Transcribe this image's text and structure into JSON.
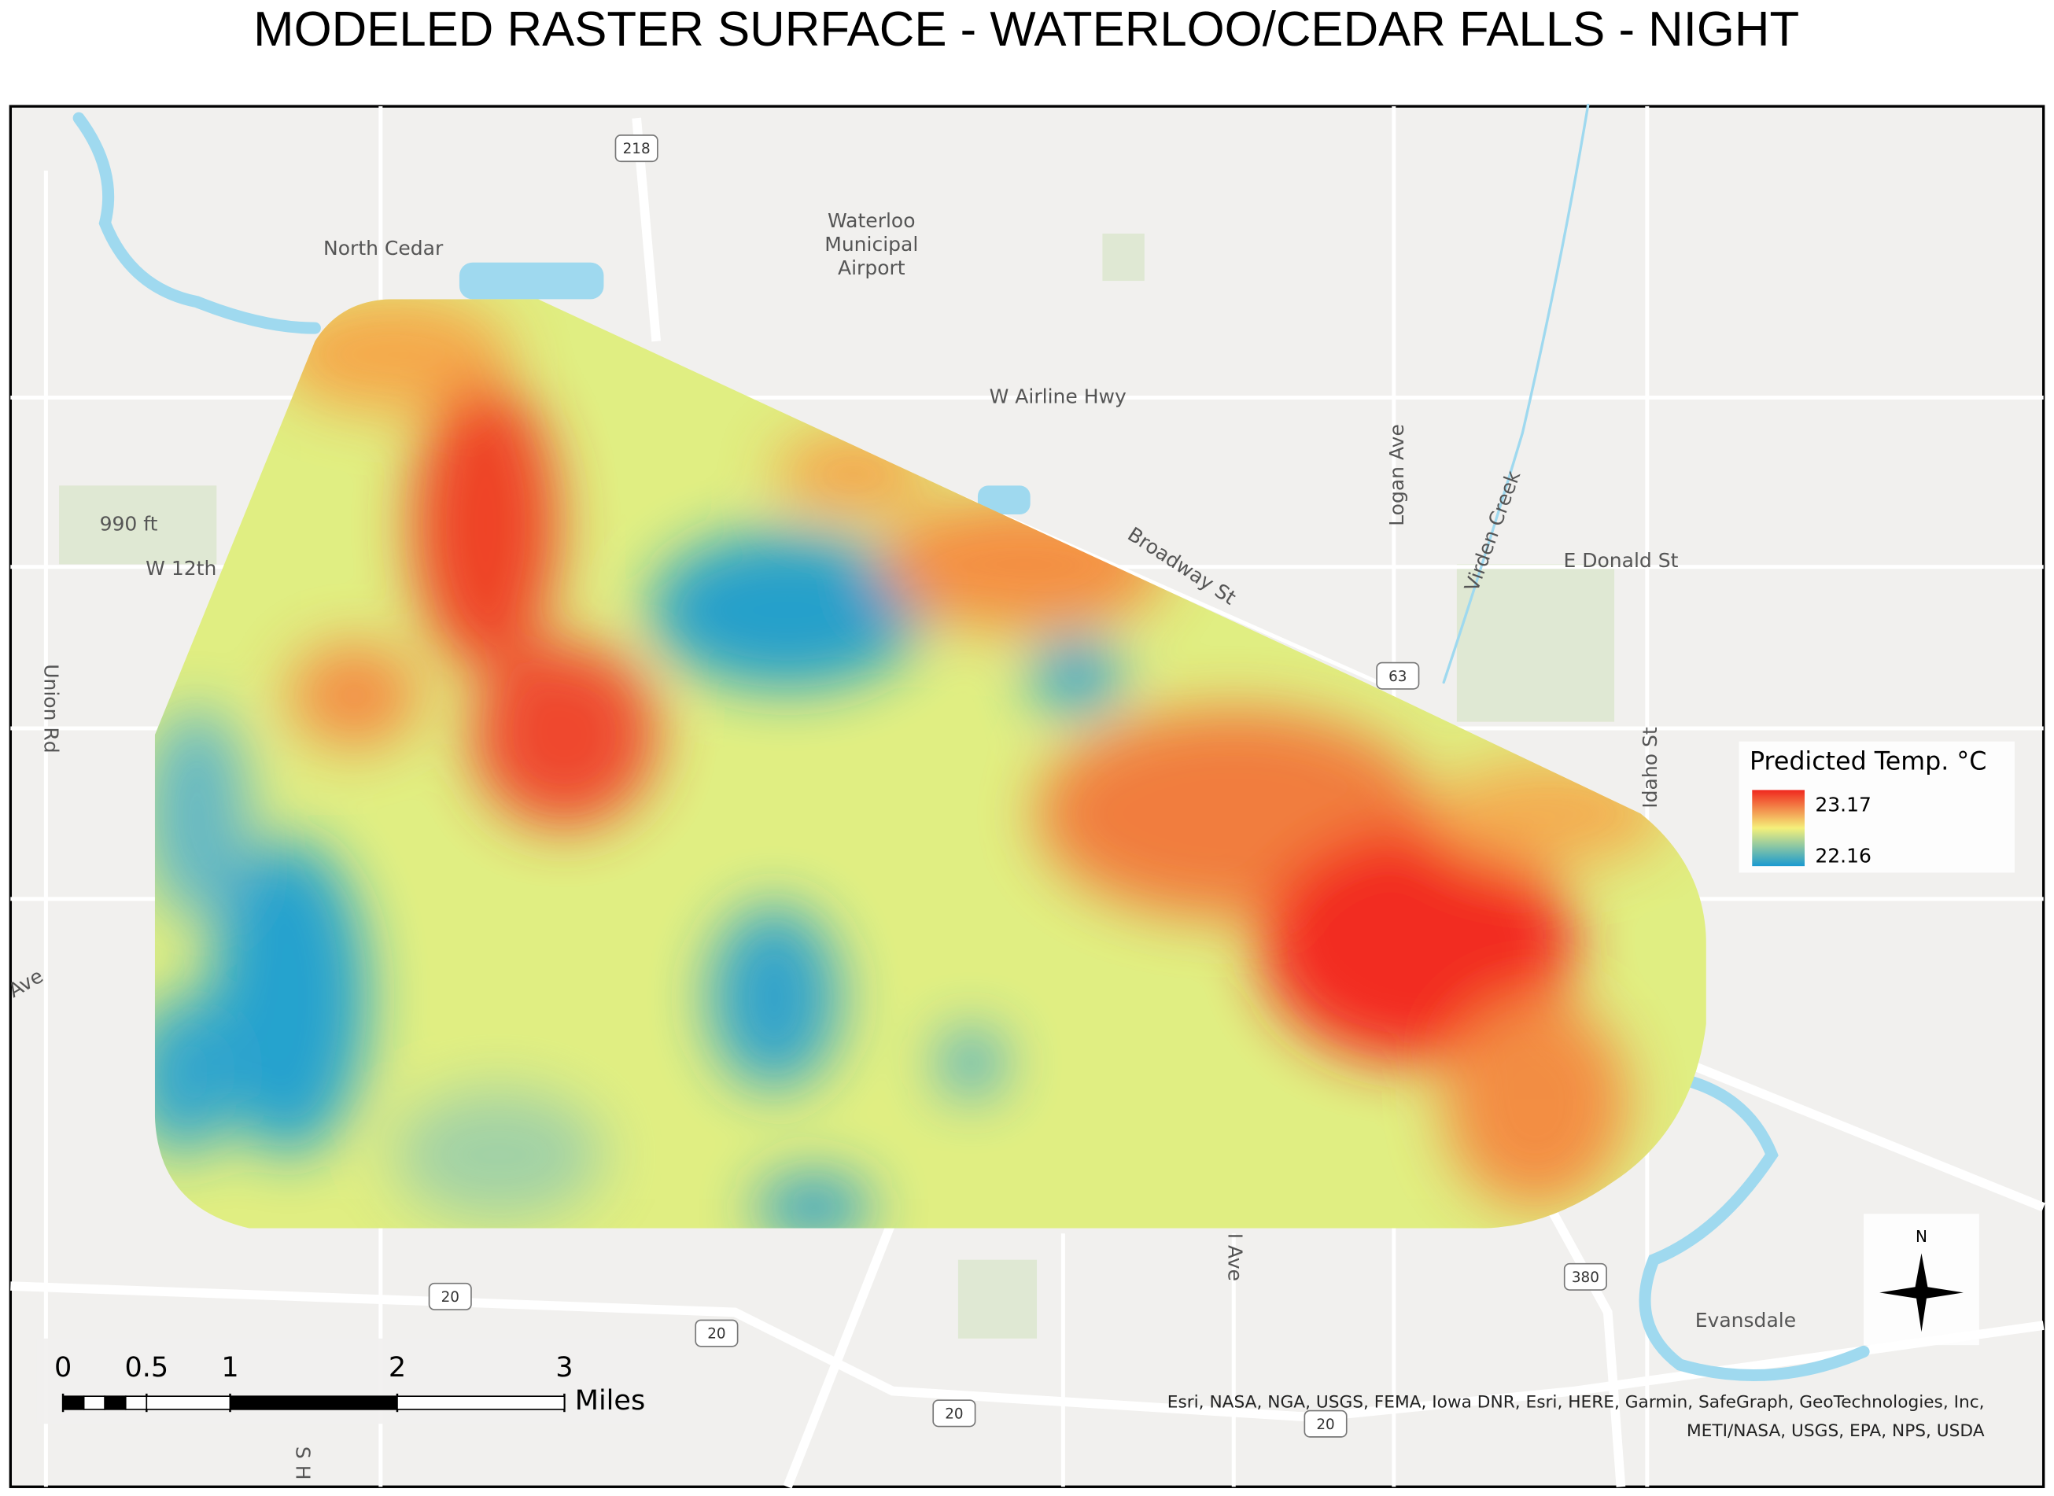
{
  "title": "MODELED RASTER SURFACE - WATERLOO/CEDAR FALLS - NIGHT",
  "places": [
    "North Cedar",
    "W Airline Hwy",
    "Broadway St",
    "Logan Ave",
    "Virden Creek",
    "E Donald St",
    "Idaho St",
    "Union Rd",
    "W 12th",
    "990 ft",
    "Evansdale",
    "I Ave",
    "Ave",
    "S H"
  ],
  "airport": [
    "Waterloo",
    "Municipal",
    "Airport"
  ],
  "shields": [
    "218",
    "63",
    "20",
    "20",
    "20",
    "20",
    "380"
  ],
  "legend": {
    "title": "Predicted Temp. °C",
    "max": 23.17,
    "min": 22.16,
    "color_ramp": [
      "#f0281e",
      "#f5f07a",
      "#1a9ad0"
    ]
  },
  "scale_bar": {
    "ticks": [
      0,
      0.5,
      1,
      2,
      3
    ],
    "unit": "Miles"
  },
  "compass": "N",
  "attribution": [
    "Esri, NASA, NGA, USGS, FEMA, Iowa DNR, Esri, HERE, Garmin, SafeGraph, GeoTechnologies, Inc,",
    "METI/NASA, USGS, EPA, NPS, USDA"
  ]
}
